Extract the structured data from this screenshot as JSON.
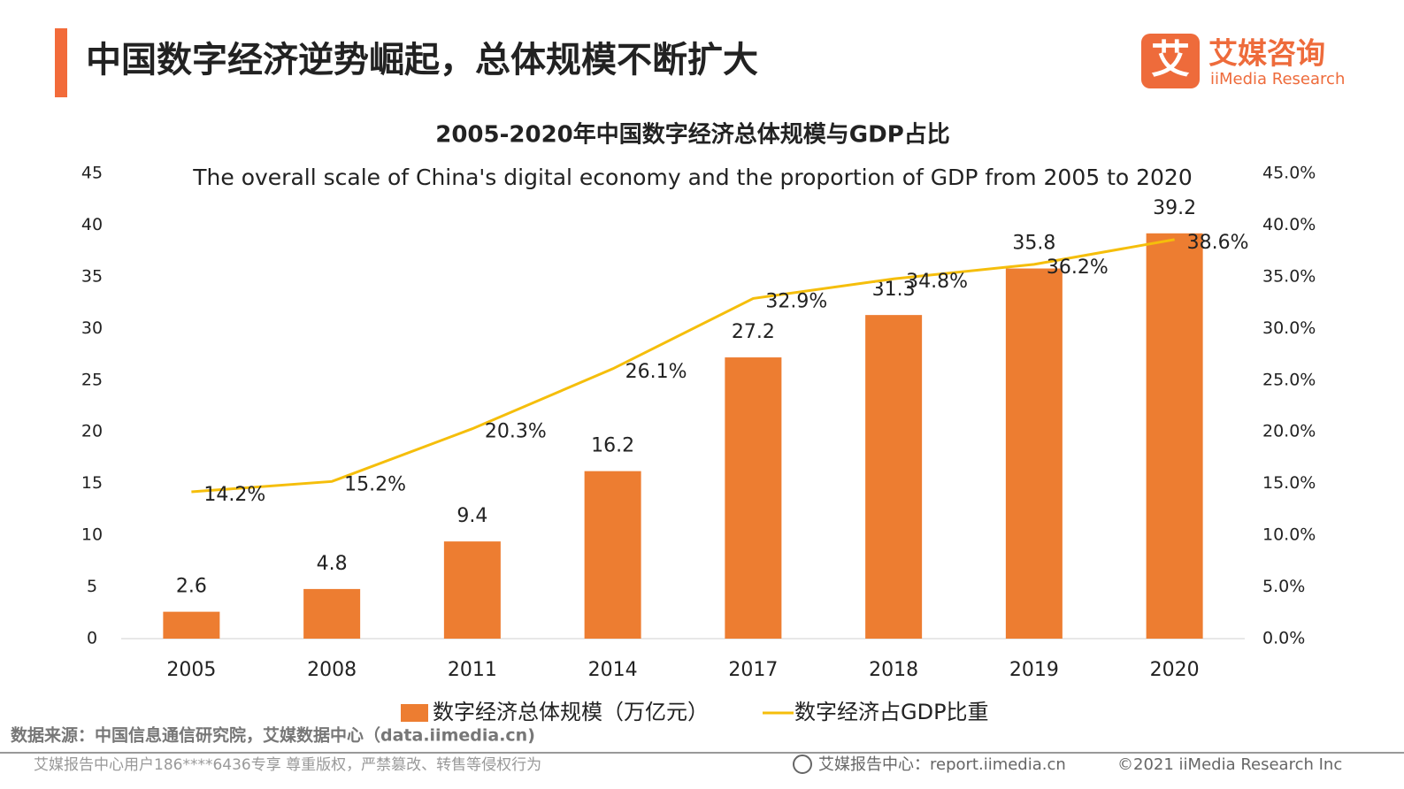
{
  "header": {
    "title": "中国数字经济逆势崛起，总体规模不断扩大"
  },
  "logo": {
    "icon": "艾",
    "name": "艾媒咨询",
    "english": "iiMedia Research"
  },
  "chart_data": {
    "type": "bar",
    "title": "2005-2020年中国数字经济总体规模与GDP占比",
    "subtitle": "The overall scale of China's digital economy and the proportion of GDP from 2005 to 2020",
    "categories": [
      "2005",
      "2008",
      "2011",
      "2014",
      "2017",
      "2018",
      "2019",
      "2020"
    ],
    "series": [
      {
        "name": "数字经济总体规模（万亿元）",
        "type": "bar",
        "color": "#ED7D31",
        "values": [
          2.6,
          4.8,
          9.4,
          16.2,
          27.2,
          31.3,
          35.8,
          39.2
        ]
      },
      {
        "name": "数字经济占GDP比重",
        "type": "line",
        "axis": "y2",
        "color": "#F5BE0B",
        "values": [
          14.2,
          15.2,
          20.3,
          26.1,
          32.9,
          34.8,
          36.2,
          38.6
        ],
        "value_labels": [
          "14.2%",
          "15.2%",
          "20.3%",
          "26.1%",
          "32.9%",
          "34.8%",
          "36.2%",
          "38.6%"
        ]
      }
    ],
    "ylim": [
      0,
      45
    ],
    "yticks": [
      0,
      5,
      10,
      15,
      20,
      25,
      30,
      35,
      40,
      45
    ],
    "y2lim": [
      0,
      45
    ],
    "y2ticks": [
      {
        "value": 0,
        "label": "0.0%"
      },
      {
        "value": 5,
        "label": "5.0%"
      },
      {
        "value": 10,
        "label": "10.0%"
      },
      {
        "value": 15,
        "label": "15.0%"
      },
      {
        "value": 20,
        "label": "20.0%"
      },
      {
        "value": 25,
        "label": "25.0%"
      },
      {
        "value": 30,
        "label": "30.0%"
      },
      {
        "value": 35,
        "label": "35.0%"
      },
      {
        "value": 40,
        "label": "40.0%"
      },
      {
        "value": 45,
        "label": "45.0%"
      }
    ],
    "grid": false,
    "legend": "bottom"
  },
  "source": "数据来源：中国信息通信研究院，艾媒数据中心（data.iimedia.cn)",
  "footer": {
    "notice": "艾媒报告中心用户186****6436专享 尊重版权，严禁篡改、转售等侵权行为",
    "site": "艾媒报告中心：report.iimedia.cn",
    "copyright": "©2021  iiMedia Research  Inc"
  }
}
